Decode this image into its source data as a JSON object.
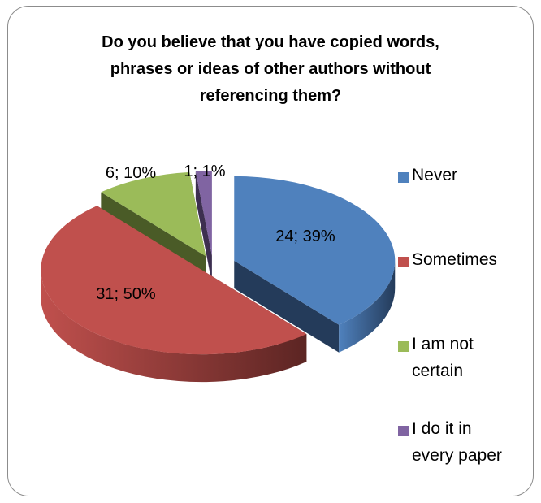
{
  "chart_data": {
    "type": "pie",
    "title_lines": [
      "Do you believe that you have copied words,",
      "phrases or ideas of other authors without",
      "referencing them?"
    ],
    "categories": [
      "Never",
      "Sometimes",
      "I am not certain",
      "I do it in every paper"
    ],
    "legend_lines": [
      [
        "Never"
      ],
      [
        "Sometimes"
      ],
      [
        "I am not",
        "certain"
      ],
      [
        "I do it in",
        "every paper"
      ]
    ],
    "values": [
      24,
      31,
      6,
      1
    ],
    "percents": [
      "39%",
      "50%",
      "10%",
      "1%"
    ],
    "data_labels": [
      "24; 39%",
      "31; 50%",
      "6; 10%",
      "1; 1%"
    ],
    "colors": [
      "#4f81bd",
      "#c0504d",
      "#9bbb59",
      "#8064a2"
    ],
    "side_colors": [
      "#243b5a",
      "#5c2523",
      "#4a5b27",
      "#3d2f50"
    ],
    "legend_position": "right",
    "style": "3d-exploded"
  }
}
